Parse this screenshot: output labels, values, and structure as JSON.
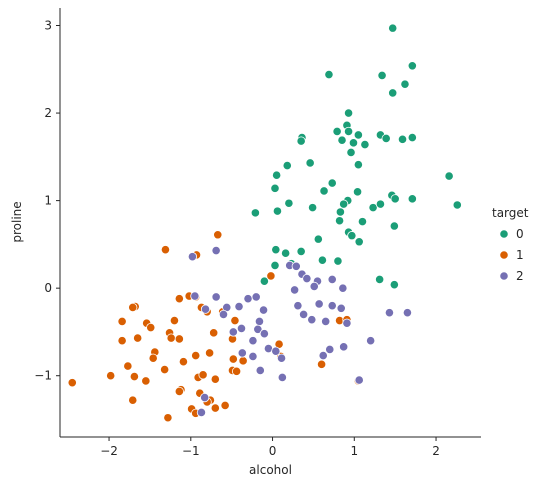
{
  "chart_data": {
    "type": "scatter",
    "xlabel": "alcohol",
    "ylabel": "proline",
    "xlim": [
      -2.6,
      2.55
    ],
    "ylim": [
      -1.7,
      3.2
    ],
    "xticks": [
      -2,
      -1,
      0,
      1,
      2
    ],
    "yticks": [
      -1,
      0,
      1,
      2,
      3
    ],
    "grid": false,
    "legend": {
      "title": "target",
      "placement": "right"
    },
    "series": [
      {
        "name": "0",
        "color": "#1b9e77",
        "points": [
          [
            1.47,
            2.97
          ],
          [
            0.69,
            2.44
          ],
          [
            1.71,
            2.54
          ],
          [
            1.34,
            2.43
          ],
          [
            1.62,
            2.33
          ],
          [
            1.47,
            2.23
          ],
          [
            0.93,
            2.0
          ],
          [
            0.91,
            1.86
          ],
          [
            0.79,
            1.79
          ],
          [
            0.93,
            1.79
          ],
          [
            1.05,
            1.75
          ],
          [
            0.36,
            1.72
          ],
          [
            0.35,
            1.68
          ],
          [
            0.85,
            1.69
          ],
          [
            0.99,
            1.66
          ],
          [
            1.13,
            1.64
          ],
          [
            1.32,
            1.75
          ],
          [
            1.39,
            1.71
          ],
          [
            1.59,
            1.7
          ],
          [
            1.71,
            1.72
          ],
          [
            0.96,
            1.55
          ],
          [
            1.05,
            1.41
          ],
          [
            0.46,
            1.43
          ],
          [
            0.18,
            1.4
          ],
          [
            0.05,
            1.29
          ],
          [
            2.16,
            1.28
          ],
          [
            0.73,
            1.2
          ],
          [
            0.63,
            1.11
          ],
          [
            0.03,
            1.14
          ],
          [
            1.04,
            1.1
          ],
          [
            1.46,
            1.06
          ],
          [
            1.5,
            1.02
          ],
          [
            1.71,
            1.02
          ],
          [
            0.2,
            0.97
          ],
          [
            0.92,
            1.0
          ],
          [
            0.87,
            0.96
          ],
          [
            1.23,
            0.92
          ],
          [
            1.32,
            0.96
          ],
          [
            -0.21,
            0.86
          ],
          [
            0.06,
            0.88
          ],
          [
            0.49,
            0.92
          ],
          [
            2.26,
            0.95
          ],
          [
            0.83,
            0.87
          ],
          [
            1.1,
            0.76
          ],
          [
            0.82,
            0.77
          ],
          [
            1.49,
            0.71
          ],
          [
            0.93,
            0.64
          ],
          [
            0.97,
            0.6
          ],
          [
            1.06,
            0.53
          ],
          [
            0.56,
            0.56
          ],
          [
            0.04,
            0.44
          ],
          [
            0.35,
            0.42
          ],
          [
            0.16,
            0.4
          ],
          [
            0.61,
            0.32
          ],
          [
            0.8,
            0.31
          ],
          [
            0.03,
            0.26
          ],
          [
            0.23,
            0.28
          ],
          [
            -0.1,
            0.08
          ],
          [
            1.31,
            0.1
          ],
          [
            1.49,
            0.04
          ]
        ]
      },
      {
        "name": "1",
        "color": "#d95f02",
        "points": [
          [
            -0.67,
            0.61
          ],
          [
            -0.02,
            0.14
          ],
          [
            -0.93,
            0.38
          ],
          [
            -1.31,
            0.44
          ],
          [
            -1.14,
            -0.12
          ],
          [
            -1.68,
            -0.21
          ],
          [
            -1.71,
            -0.22
          ],
          [
            -1.02,
            -0.09
          ],
          [
            -0.94,
            -0.1
          ],
          [
            -1.54,
            -0.4
          ],
          [
            -1.84,
            -0.38
          ],
          [
            -1.49,
            -0.45
          ],
          [
            -1.2,
            -0.37
          ],
          [
            -0.87,
            -0.22
          ],
          [
            -0.8,
            -0.27
          ],
          [
            -0.61,
            -0.27
          ],
          [
            -1.84,
            -0.6
          ],
          [
            -1.65,
            -0.57
          ],
          [
            -1.26,
            -0.51
          ],
          [
            -1.24,
            -0.57
          ],
          [
            -1.14,
            -0.58
          ],
          [
            -0.72,
            -0.51
          ],
          [
            -0.49,
            -0.58
          ],
          [
            -0.46,
            -0.37
          ],
          [
            -1.44,
            -0.73
          ],
          [
            -1.46,
            -0.8
          ],
          [
            -1.09,
            -0.84
          ],
          [
            -0.94,
            -0.77
          ],
          [
            -0.77,
            -0.74
          ],
          [
            -0.48,
            -0.81
          ],
          [
            -0.36,
            -0.83
          ],
          [
            0.1,
            -0.78
          ],
          [
            0.08,
            -0.64
          ],
          [
            0.6,
            -0.87
          ],
          [
            0.82,
            -0.37
          ],
          [
            -1.77,
            -0.89
          ],
          [
            -1.32,
            -0.93
          ],
          [
            -1.98,
            -1.0
          ],
          [
            -1.69,
            -1.01
          ],
          [
            -1.55,
            -1.06
          ],
          [
            -0.91,
            -1.02
          ],
          [
            -0.85,
            -0.99
          ],
          [
            -0.7,
            -1.04
          ],
          [
            -0.49,
            -0.94
          ],
          [
            -0.44,
            -0.95
          ],
          [
            -1.12,
            -1.16
          ],
          [
            -0.89,
            -1.2
          ],
          [
            -1.71,
            -1.28
          ],
          [
            -1.14,
            -1.18
          ],
          [
            -0.76,
            -1.28
          ],
          [
            -0.7,
            -1.37
          ],
          [
            -0.8,
            -1.3
          ],
          [
            -0.99,
            -1.38
          ],
          [
            -0.94,
            -1.43
          ],
          [
            -0.58,
            -1.34
          ],
          [
            -1.28,
            -1.48
          ],
          [
            -2.45,
            -1.08
          ],
          [
            1.05,
            -1.06
          ],
          [
            0.91,
            -0.36
          ]
        ]
      },
      {
        "name": "2",
        "color": "#7570b3",
        "points": [
          [
            -0.69,
            0.43
          ],
          [
            -0.98,
            0.36
          ],
          [
            -0.95,
            -0.09
          ],
          [
            -0.69,
            -0.1
          ],
          [
            -0.82,
            -0.24
          ],
          [
            -0.56,
            -0.22
          ],
          [
            -0.41,
            -0.21
          ],
          [
            -0.3,
            -0.12
          ],
          [
            -0.2,
            -0.1
          ],
          [
            -0.11,
            -0.25
          ],
          [
            0.21,
            0.26
          ],
          [
            0.29,
            0.25
          ],
          [
            0.36,
            0.16
          ],
          [
            0.42,
            0.11
          ],
          [
            0.55,
            0.08
          ],
          [
            0.73,
            0.1
          ],
          [
            0.27,
            -0.02
          ],
          [
            0.51,
            0.02
          ],
          [
            0.86,
            0.0
          ],
          [
            0.31,
            -0.2
          ],
          [
            0.57,
            -0.18
          ],
          [
            0.73,
            -0.2
          ],
          [
            0.38,
            -0.3
          ],
          [
            0.48,
            -0.36
          ],
          [
            0.65,
            -0.38
          ],
          [
            0.91,
            -0.4
          ],
          [
            0.84,
            -0.23
          ],
          [
            -0.6,
            -0.3
          ],
          [
            -0.38,
            -0.46
          ],
          [
            -0.16,
            -0.38
          ],
          [
            -0.18,
            -0.47
          ],
          [
            -0.1,
            -0.52
          ],
          [
            -0.24,
            -0.6
          ],
          [
            -0.48,
            -0.5
          ],
          [
            -0.37,
            -0.74
          ],
          [
            -0.24,
            -0.78
          ],
          [
            -0.05,
            -0.69
          ],
          [
            0.04,
            -0.72
          ],
          [
            0.11,
            -0.8
          ],
          [
            -0.15,
            -0.94
          ],
          [
            0.62,
            -0.77
          ],
          [
            0.7,
            -0.7
          ],
          [
            0.87,
            -0.67
          ],
          [
            1.2,
            -0.6
          ],
          [
            1.43,
            -0.28
          ],
          [
            1.65,
            -0.28
          ],
          [
            -0.83,
            -1.25
          ],
          [
            0.12,
            -1.02
          ],
          [
            1.06,
            -1.05
          ],
          [
            -0.87,
            -1.42
          ]
        ]
      }
    ]
  }
}
